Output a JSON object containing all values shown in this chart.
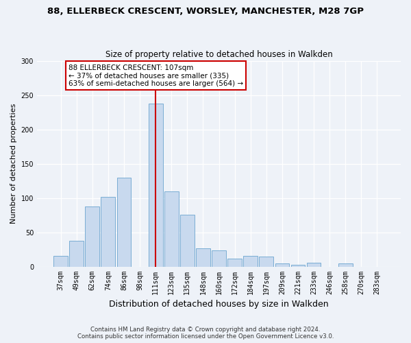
{
  "title": "88, ELLERBECK CRESCENT, WORSLEY, MANCHESTER, M28 7GP",
  "subtitle": "Size of property relative to detached houses in Walkden",
  "xlabel": "Distribution of detached houses by size in Walkden",
  "ylabel": "Number of detached properties",
  "bar_color": "#c8d9ee",
  "bar_edge_color": "#7aadd4",
  "categories": [
    "37sqm",
    "49sqm",
    "62sqm",
    "74sqm",
    "86sqm",
    "98sqm",
    "111sqm",
    "123sqm",
    "135sqm",
    "148sqm",
    "160sqm",
    "172sqm",
    "184sqm",
    "197sqm",
    "209sqm",
    "221sqm",
    "233sqm",
    "246sqm",
    "258sqm",
    "270sqm",
    "283sqm"
  ],
  "values": [
    16,
    38,
    88,
    102,
    130,
    0,
    238,
    110,
    76,
    27,
    24,
    12,
    16,
    15,
    5,
    3,
    6,
    0,
    5,
    0,
    0
  ],
  "ylim": [
    0,
    300
  ],
  "yticks": [
    0,
    50,
    100,
    150,
    200,
    250,
    300
  ],
  "vline_x": 6,
  "annotation_text": "88 ELLERBECK CRESCENT: 107sqm\n← 37% of detached houses are smaller (335)\n63% of semi-detached houses are larger (564) →",
  "annotation_box_color": "#ffffff",
  "annotation_box_edge": "#cc0000",
  "vline_color": "#cc0000",
  "footer_line1": "Contains HM Land Registry data © Crown copyright and database right 2024.",
  "footer_line2": "Contains public sector information licensed under the Open Government Licence v3.0.",
  "background_color": "#eef2f8",
  "plot_bg_color": "#eef2f8",
  "figwidth": 6.0,
  "figheight": 5.0,
  "dpi": 100
}
